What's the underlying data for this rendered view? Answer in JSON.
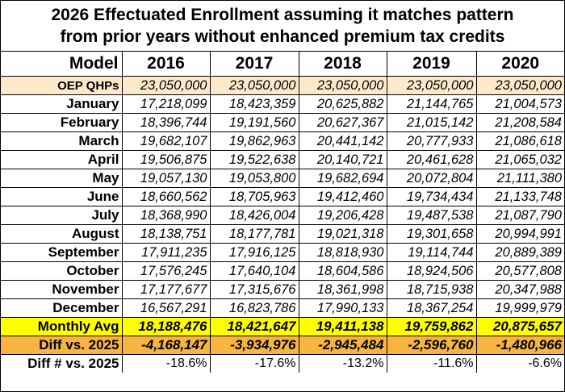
{
  "title": {
    "line1": "2026 Effectuated Enrollment assuming it matches pattern",
    "line2": "from prior years without enhanced premium tax credits"
  },
  "header": {
    "model": "Model",
    "years": [
      "2016",
      "2017",
      "2018",
      "2019",
      "2020"
    ]
  },
  "oep": {
    "label": "OEP QHPs",
    "values": [
      "23,050,000",
      "23,050,000",
      "23,050,000",
      "23,050,000",
      "23,050,000"
    ]
  },
  "months": [
    {
      "label": "January",
      "values": [
        "17,218,099",
        "18,423,359",
        "20,625,882",
        "21,144,765",
        "21,004,573"
      ]
    },
    {
      "label": "February",
      "values": [
        "18,396,744",
        "19,191,560",
        "20,627,367",
        "21,015,142",
        "21,208,584"
      ]
    },
    {
      "label": "March",
      "values": [
        "19,682,107",
        "19,862,963",
        "20,441,142",
        "20,777,933",
        "21,086,618"
      ]
    },
    {
      "label": "April",
      "values": [
        "19,506,875",
        "19,522,638",
        "20,140,721",
        "20,461,628",
        "21,065,032"
      ]
    },
    {
      "label": "May",
      "values": [
        "19,057,130",
        "19,053,800",
        "19,682,694",
        "20,072,804",
        "21,111,380"
      ]
    },
    {
      "label": "June",
      "values": [
        "18,660,562",
        "18,705,963",
        "19,412,460",
        "19,734,434",
        "21,133,748"
      ]
    },
    {
      "label": "July",
      "values": [
        "18,368,990",
        "18,426,004",
        "19,206,428",
        "19,487,538",
        "21,087,790"
      ]
    },
    {
      "label": "August",
      "values": [
        "18,138,751",
        "18,177,781",
        "19,021,318",
        "19,301,658",
        "20,994,991"
      ]
    },
    {
      "label": "September",
      "values": [
        "17,911,235",
        "17,916,125",
        "18,818,930",
        "19,114,744",
        "20,889,389"
      ]
    },
    {
      "label": "October",
      "values": [
        "17,576,245",
        "17,640,104",
        "18,604,586",
        "18,924,506",
        "20,577,808"
      ]
    },
    {
      "label": "November",
      "values": [
        "17,177,677",
        "17,315,676",
        "18,361,998",
        "18,715,938",
        "20,347,988"
      ]
    },
    {
      "label": "December",
      "values": [
        "16,567,291",
        "16,823,786",
        "17,990,133",
        "18,367,254",
        "19,999,979"
      ]
    }
  ],
  "monthly_avg": {
    "label": "Monthly Avg",
    "values": [
      "18,188,476",
      "18,421,647",
      "19,411,138",
      "19,759,862",
      "20,875,657"
    ]
  },
  "diff": {
    "label": "Diff vs. 2025",
    "values": [
      "-4,168,147",
      "-3,934,976",
      "-2,945,484",
      "-2,596,760",
      "-1,480,966"
    ]
  },
  "diff_pct": {
    "label": "Diff # vs. 2025",
    "values": [
      "-18.6%",
      "-17.6%",
      "-13.2%",
      "-11.6%",
      "-6.6%"
    ]
  },
  "colors": {
    "oep_bg": "#fde9c9",
    "avg_bg": "#ffff00",
    "diff_bg": "#f7b440"
  }
}
